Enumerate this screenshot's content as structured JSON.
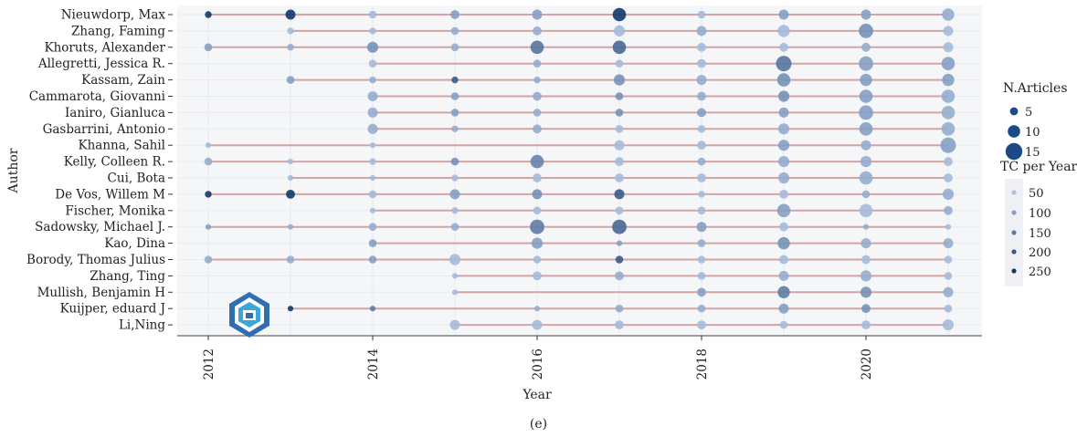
{
  "caption": "(e)",
  "chart_data": {
    "type": "scatter",
    "xlabel": "Year",
    "ylabel": "Author",
    "xlim": [
      2012,
      2021
    ],
    "x_ticks": [
      2012,
      2014,
      2016,
      2018,
      2020
    ],
    "colors": {
      "line": "#d4a3a5",
      "point_light": "#9cb3d4",
      "point_dark": "#10386b",
      "panel": "#f5f6f8"
    },
    "authors": [
      {
        "name": "Nieuwdorp, Max",
        "points": [
          [
            2012,
            2,
            250
          ],
          [
            2013,
            5,
            250
          ],
          [
            2014,
            3,
            60
          ],
          [
            2015,
            4,
            100
          ],
          [
            2016,
            5,
            100
          ],
          [
            2017,
            8,
            250
          ],
          [
            2018,
            3,
            60
          ],
          [
            2019,
            5,
            100
          ],
          [
            2020,
            5,
            100
          ],
          [
            2021,
            7,
            80
          ]
        ]
      },
      {
        "name": "Zhang, Faming",
        "points": [
          [
            2013,
            2,
            60
          ],
          [
            2014,
            2,
            60
          ],
          [
            2015,
            3,
            80
          ],
          [
            2016,
            4,
            80
          ],
          [
            2017,
            6,
            60
          ],
          [
            2018,
            5,
            80
          ],
          [
            2019,
            7,
            60
          ],
          [
            2020,
            9,
            120
          ],
          [
            2021,
            5,
            60
          ]
        ]
      },
      {
        "name": "Khoruts, Alexander",
        "points": [
          [
            2012,
            3,
            100
          ],
          [
            2013,
            2,
            80
          ],
          [
            2014,
            6,
            120
          ],
          [
            2015,
            3,
            80
          ],
          [
            2016,
            8,
            160
          ],
          [
            2017,
            8,
            180
          ],
          [
            2018,
            4,
            60
          ],
          [
            2019,
            4,
            60
          ],
          [
            2020,
            4,
            80
          ],
          [
            2021,
            5,
            60
          ]
        ]
      },
      {
        "name": "Allegretti, Jessica R.",
        "points": [
          [
            2014,
            3,
            60
          ],
          [
            2016,
            3,
            80
          ],
          [
            2017,
            3,
            60
          ],
          [
            2018,
            4,
            60
          ],
          [
            2019,
            10,
            160
          ],
          [
            2020,
            9,
            100
          ],
          [
            2021,
            8,
            100
          ]
        ]
      },
      {
        "name": "Kassam, Zain",
        "points": [
          [
            2013,
            3,
            100
          ],
          [
            2014,
            2,
            80
          ],
          [
            2015,
            2,
            200
          ],
          [
            2016,
            2,
            80
          ],
          [
            2017,
            6,
            120
          ],
          [
            2018,
            5,
            80
          ],
          [
            2019,
            8,
            120
          ],
          [
            2020,
            7,
            100
          ],
          [
            2021,
            7,
            100
          ]
        ]
      },
      {
        "name": "Cammarota, Giovanni",
        "points": [
          [
            2014,
            5,
            80
          ],
          [
            2015,
            3,
            100
          ],
          [
            2016,
            4,
            80
          ],
          [
            2017,
            3,
            120
          ],
          [
            2018,
            4,
            80
          ],
          [
            2019,
            6,
            120
          ],
          [
            2020,
            8,
            100
          ],
          [
            2021,
            8,
            80
          ]
        ]
      },
      {
        "name": "Ianiro, Gianluca",
        "points": [
          [
            2014,
            5,
            80
          ],
          [
            2015,
            3,
            100
          ],
          [
            2016,
            3,
            80
          ],
          [
            2017,
            3,
            120
          ],
          [
            2018,
            4,
            100
          ],
          [
            2019,
            5,
            100
          ],
          [
            2020,
            9,
            100
          ],
          [
            2021,
            8,
            80
          ]
        ]
      },
      {
        "name": "Gasbarrini, Antonio",
        "points": [
          [
            2014,
            5,
            80
          ],
          [
            2015,
            2,
            80
          ],
          [
            2016,
            4,
            80
          ],
          [
            2017,
            3,
            60
          ],
          [
            2018,
            3,
            60
          ],
          [
            2019,
            6,
            80
          ],
          [
            2020,
            8,
            100
          ],
          [
            2021,
            8,
            80
          ]
        ]
      },
      {
        "name": "Khanna, Sahil",
        "points": [
          [
            2012,
            1,
            60
          ],
          [
            2014,
            1,
            60
          ],
          [
            2017,
            5,
            60
          ],
          [
            2018,
            4,
            60
          ],
          [
            2019,
            6,
            100
          ],
          [
            2020,
            5,
            80
          ],
          [
            2021,
            10,
            100
          ]
        ]
      },
      {
        "name": "Kelly, Colleen R.",
        "points": [
          [
            2012,
            3,
            80
          ],
          [
            2013,
            1,
            60
          ],
          [
            2014,
            2,
            60
          ],
          [
            2015,
            3,
            120
          ],
          [
            2016,
            8,
            140
          ],
          [
            2017,
            4,
            60
          ],
          [
            2018,
            3,
            80
          ],
          [
            2019,
            6,
            80
          ],
          [
            2020,
            6,
            80
          ],
          [
            2021,
            4,
            60
          ]
        ]
      },
      {
        "name": "Cui, Bota",
        "points": [
          [
            2013,
            1,
            60
          ],
          [
            2014,
            1,
            60
          ],
          [
            2015,
            2,
            60
          ],
          [
            2016,
            4,
            60
          ],
          [
            2017,
            4,
            60
          ],
          [
            2018,
            4,
            60
          ],
          [
            2019,
            6,
            80
          ],
          [
            2020,
            8,
            80
          ],
          [
            2021,
            4,
            60
          ]
        ]
      },
      {
        "name": "De Vos, Willem M",
        "points": [
          [
            2012,
            2,
            250
          ],
          [
            2013,
            4,
            250
          ],
          [
            2014,
            3,
            60
          ],
          [
            2015,
            5,
            100
          ],
          [
            2016,
            5,
            120
          ],
          [
            2017,
            5,
            200
          ],
          [
            2018,
            2,
            60
          ],
          [
            2019,
            4,
            60
          ],
          [
            2020,
            3,
            80
          ],
          [
            2021,
            6,
            80
          ]
        ]
      },
      {
        "name": "Fischer, Monika",
        "points": [
          [
            2014,
            1,
            60
          ],
          [
            2015,
            2,
            60
          ],
          [
            2016,
            3,
            60
          ],
          [
            2017,
            3,
            60
          ],
          [
            2018,
            3,
            60
          ],
          [
            2019,
            8,
            100
          ],
          [
            2020,
            8,
            60
          ],
          [
            2021,
            4,
            80
          ]
        ]
      },
      {
        "name": "Sadowsky, Michael J.",
        "points": [
          [
            2012,
            1,
            100
          ],
          [
            2013,
            1,
            80
          ],
          [
            2014,
            3,
            80
          ],
          [
            2015,
            3,
            80
          ],
          [
            2016,
            9,
            150
          ],
          [
            2017,
            9,
            180
          ],
          [
            2018,
            5,
            100
          ],
          [
            2019,
            4,
            60
          ],
          [
            2020,
            1,
            80
          ],
          [
            2021,
            1,
            60
          ]
        ]
      },
      {
        "name": "Kao, Dina",
        "points": [
          [
            2014,
            3,
            100
          ],
          [
            2016,
            6,
            100
          ],
          [
            2017,
            1,
            100
          ],
          [
            2018,
            3,
            80
          ],
          [
            2019,
            7,
            120
          ],
          [
            2020,
            5,
            80
          ],
          [
            2021,
            5,
            80
          ]
        ]
      },
      {
        "name": "Borody, Thomas Julius",
        "points": [
          [
            2012,
            3,
            80
          ],
          [
            2013,
            3,
            80
          ],
          [
            2014,
            3,
            100
          ],
          [
            2015,
            6,
            60
          ],
          [
            2016,
            3,
            60
          ],
          [
            2017,
            3,
            200
          ],
          [
            2018,
            3,
            60
          ],
          [
            2019,
            4,
            60
          ],
          [
            2020,
            4,
            60
          ],
          [
            2021,
            3,
            60
          ]
        ]
      },
      {
        "name": "Zhang, Ting",
        "points": [
          [
            2015,
            1,
            60
          ],
          [
            2016,
            4,
            60
          ],
          [
            2017,
            4,
            80
          ],
          [
            2018,
            3,
            60
          ],
          [
            2019,
            5,
            80
          ],
          [
            2020,
            6,
            80
          ],
          [
            2021,
            3,
            60
          ]
        ]
      },
      {
        "name": "Mullish, Benjamin H",
        "points": [
          [
            2015,
            1,
            60
          ],
          [
            2018,
            4,
            100
          ],
          [
            2019,
            7,
            150
          ],
          [
            2020,
            6,
            120
          ],
          [
            2021,
            5,
            80
          ]
        ]
      },
      {
        "name": "Kuijper, eduard J",
        "points": [
          [
            2013,
            1,
            250
          ],
          [
            2014,
            1,
            150
          ],
          [
            2016,
            1,
            80
          ],
          [
            2017,
            3,
            80
          ],
          [
            2018,
            3,
            80
          ],
          [
            2019,
            5,
            100
          ],
          [
            2020,
            4,
            120
          ],
          [
            2021,
            3,
            60
          ]
        ]
      },
      {
        "name": "Li,Ning",
        "points": [
          [
            2015,
            5,
            60
          ],
          [
            2016,
            5,
            60
          ],
          [
            2017,
            4,
            60
          ],
          [
            2018,
            4,
            60
          ],
          [
            2019,
            3,
            60
          ],
          [
            2020,
            4,
            60
          ],
          [
            2021,
            6,
            60
          ]
        ]
      }
    ],
    "legend_articles": {
      "title": "N.Articles",
      "values": [
        5,
        10,
        15
      ]
    },
    "legend_tc": {
      "title": "TC per Year",
      "values": [
        50,
        100,
        150,
        200,
        250
      ]
    }
  }
}
